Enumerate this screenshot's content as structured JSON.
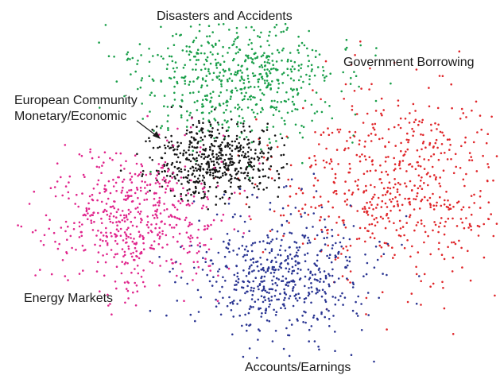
{
  "chart_data": {
    "type": "scatter",
    "title": "",
    "xlabel": "",
    "ylabel": "",
    "grid": false,
    "axes_visible": false,
    "clusters": [
      {
        "label": "Disasters and Accidents",
        "color": "#1a9f4a",
        "center": [
          300,
          100
        ],
        "spread": [
          62,
          40
        ],
        "count": 620,
        "seed": 11
      },
      {
        "label": "Government Borrowing",
        "color": "#e0262a",
        "center": [
          490,
          230
        ],
        "spread": [
          75,
          60
        ],
        "count": 620,
        "seed": 23
      },
      {
        "label": "European Community Monetary/Economic",
        "color": "#141414",
        "center": [
          270,
          205
        ],
        "spread": [
          38,
          24
        ],
        "count": 520,
        "seed": 37
      },
      {
        "label": "Energy Markets",
        "color": "#e0258c",
        "center": [
          170,
          275
        ],
        "spread": [
          55,
          45
        ],
        "count": 560,
        "seed": 41
      },
      {
        "label": "Accounts/Earnings",
        "color": "#2a3592",
        "center": [
          360,
          345
        ],
        "spread": [
          60,
          42
        ],
        "count": 560,
        "seed": 53
      }
    ],
    "annotations": [
      {
        "text": "Disasters and Accidents"
      },
      {
        "text": "Government Borrowing"
      },
      {
        "text": "European Community"
      },
      {
        "text": "Monetary/Economic"
      },
      {
        "text": "Energy Markets"
      },
      {
        "text": "Accounts/Earnings"
      }
    ]
  }
}
